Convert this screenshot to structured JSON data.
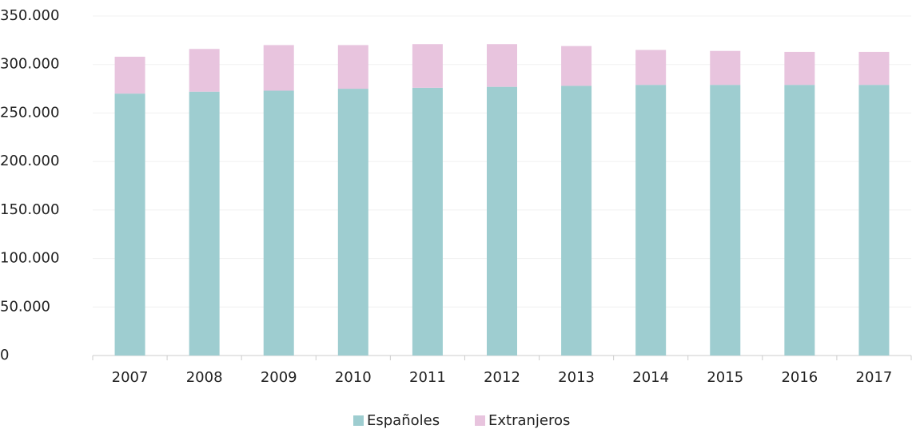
{
  "chart_data": {
    "type": "stacked-bar",
    "categories": [
      "2007",
      "2008",
      "2009",
      "2010",
      "2011",
      "2012",
      "2013",
      "2014",
      "2015",
      "2016",
      "2017"
    ],
    "series": [
      {
        "name": "Españoles",
        "color": "#9ecdd0",
        "values": [
          270000,
          272000,
          273000,
          275000,
          276000,
          277000,
          278000,
          279000,
          279000,
          279000,
          279000
        ]
      },
      {
        "name": "Extranjeros",
        "color": "#e8c4de",
        "values": [
          38000,
          44000,
          47000,
          45000,
          45000,
          44000,
          41000,
          36000,
          35000,
          34000,
          34000
        ]
      }
    ],
    "ylim": [
      0,
      350000
    ],
    "yticks": [
      0,
      {
        "value": 50000,
        "label": "50.000"
      },
      {
        "value": 100000,
        "label": "100.000"
      },
      {
        "value": 150000,
        "label": "150.000"
      },
      {
        "value": 200000,
        "label": "200.000"
      },
      {
        "value": 250000,
        "label": "250.000"
      },
      {
        "value": 300000,
        "label": "300.000"
      },
      {
        "value": 350000,
        "label": "350.000"
      }
    ],
    "grid": true,
    "legend": "bottom"
  }
}
